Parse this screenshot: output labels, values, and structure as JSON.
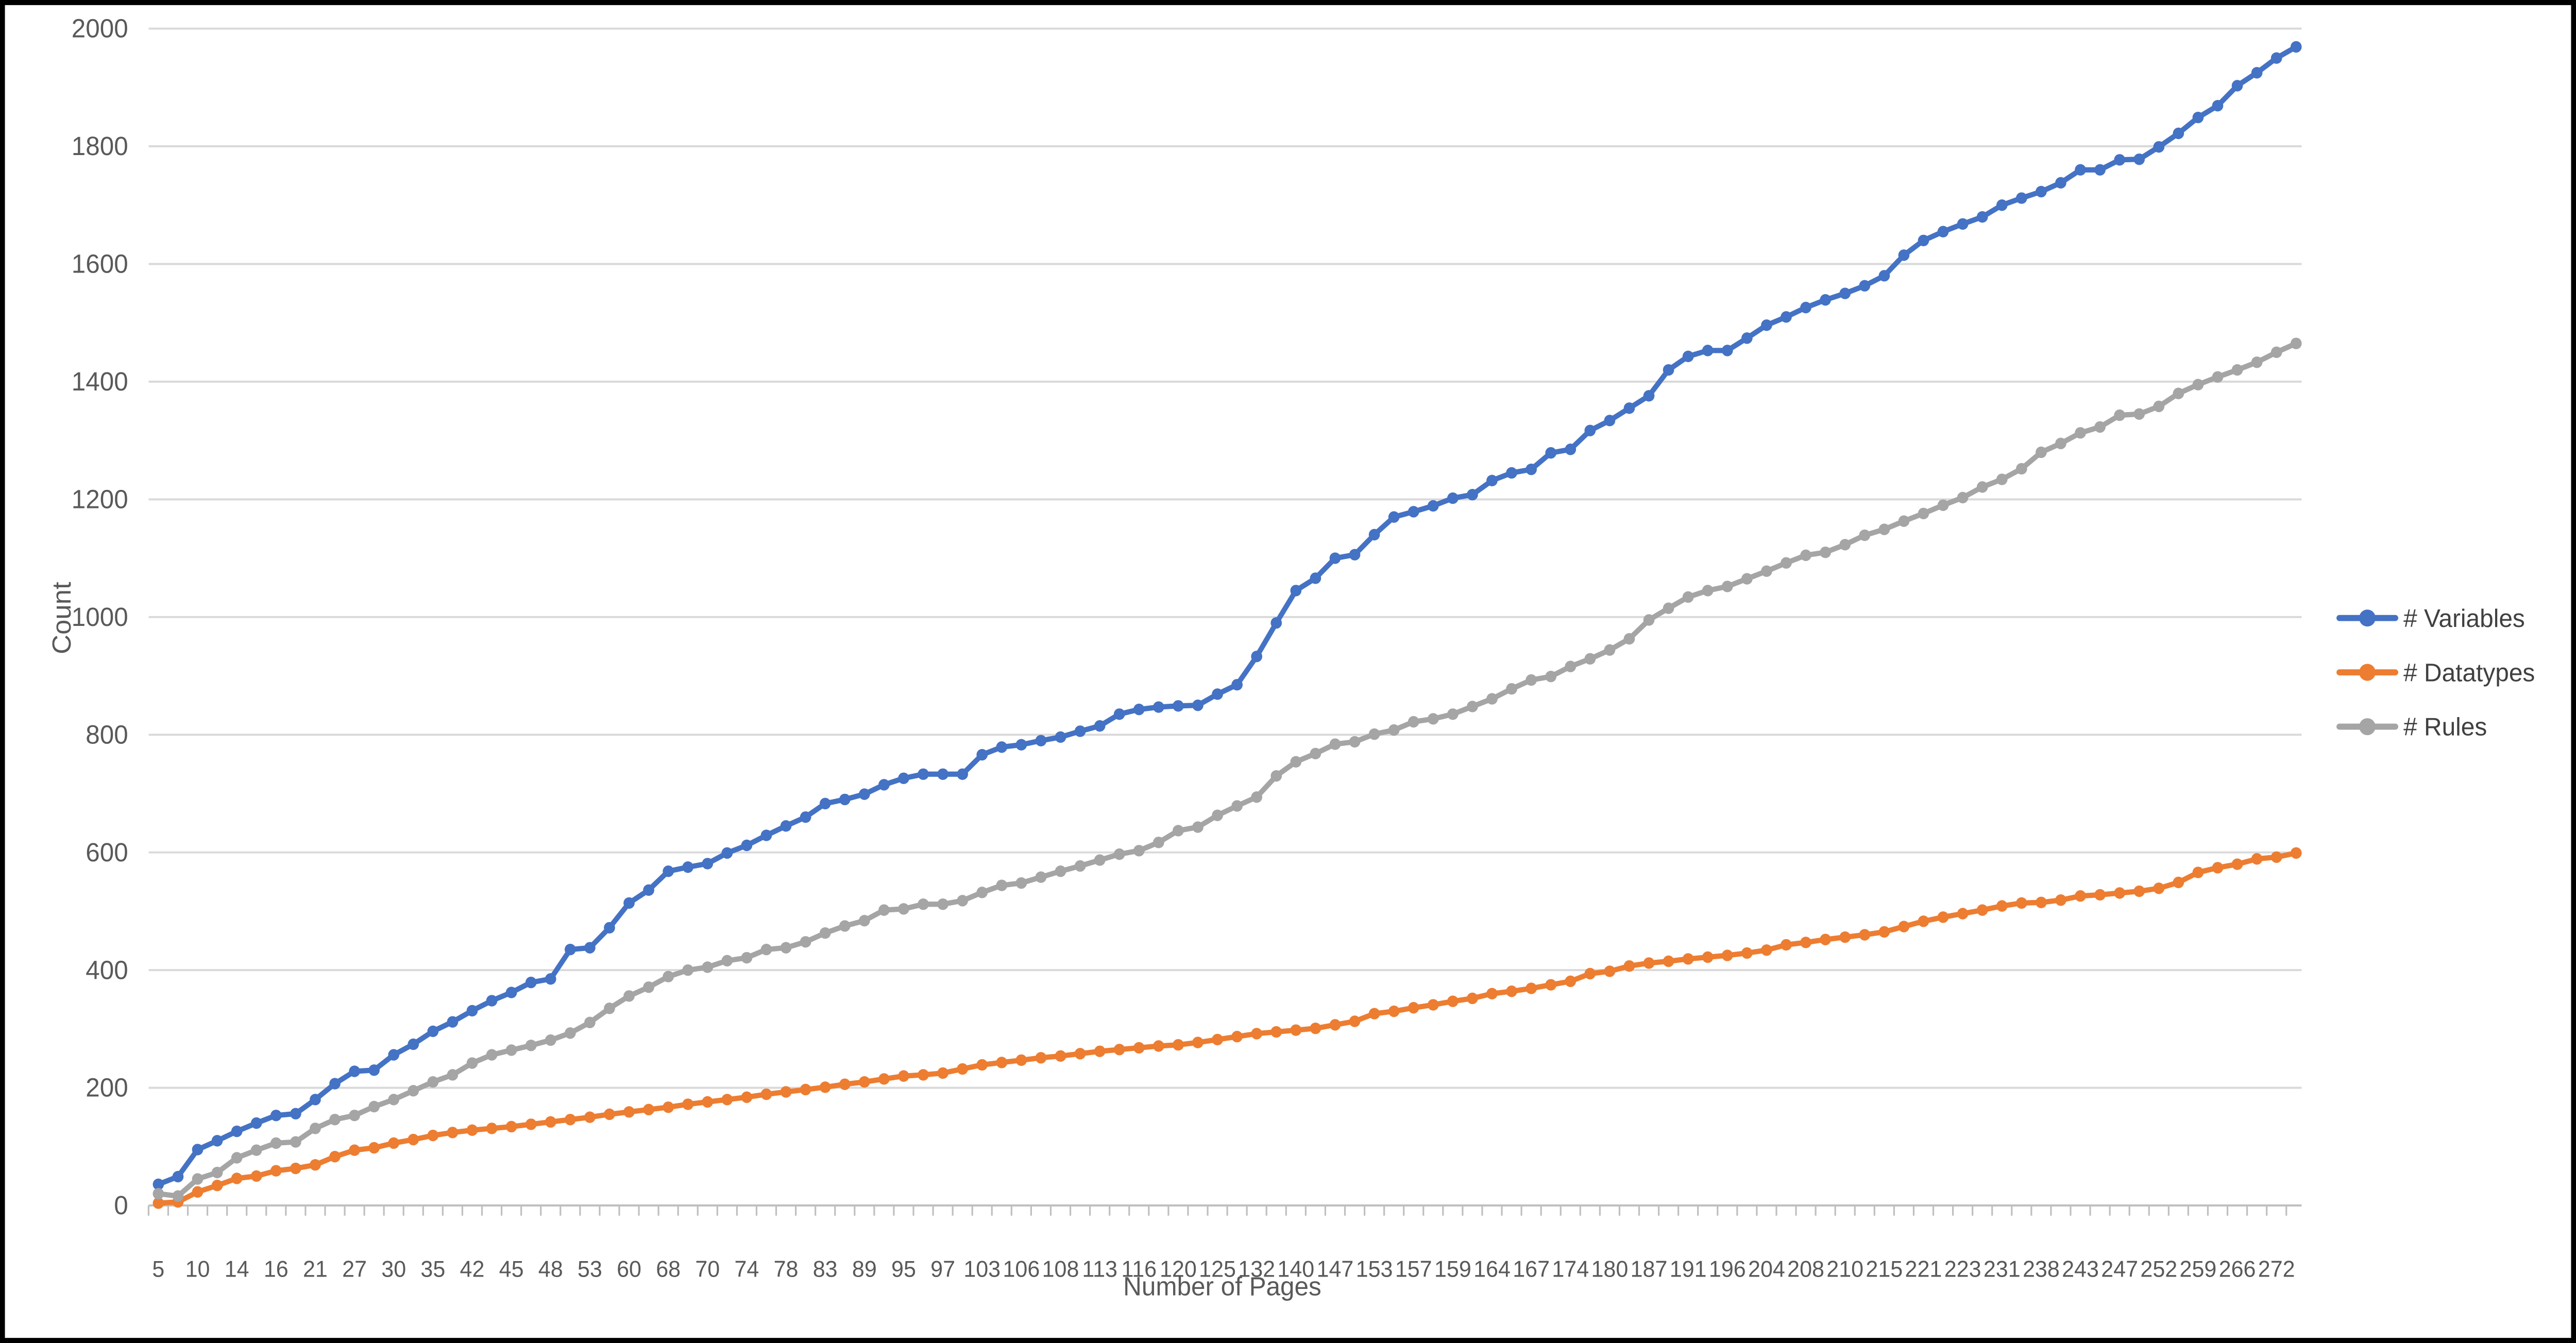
{
  "chart_data": {
    "type": "line",
    "title": "",
    "xlabel": "Number of Pages",
    "ylabel": "Count",
    "ylim": [
      0,
      2000
    ],
    "ytick_step": 200,
    "grid": "horizontal",
    "legend_position": "right",
    "n_categories": 110,
    "label_every_n_categories": 2,
    "x_tick_labels": [
      5,
      10,
      14,
      16,
      21,
      27,
      30,
      35,
      42,
      45,
      48,
      53,
      60,
      68,
      70,
      74,
      78,
      83,
      89,
      95,
      97,
      103,
      106,
      108,
      113,
      116,
      120,
      125,
      132,
      140,
      147,
      153,
      157,
      159,
      164,
      167,
      174,
      180,
      187,
      191,
      196,
      204,
      208,
      210,
      215,
      221,
      223,
      231,
      238,
      243,
      247,
      252,
      259,
      266,
      272
    ],
    "series": [
      {
        "name": "# Variables",
        "color": "#4472C4",
        "values": [
          36,
          49,
          95,
          110,
          126,
          140,
          153,
          156,
          180,
          207,
          228,
          230,
          256,
          274,
          296,
          312,
          331,
          348,
          362,
          379,
          385,
          435,
          438,
          472,
          514,
          536,
          568,
          575,
          581,
          599,
          612,
          629,
          645,
          660,
          683,
          690,
          699,
          715,
          726,
          733,
          733,
          733,
          766,
          779,
          783,
          790,
          796,
          806,
          815,
          835,
          843,
          847,
          849,
          850,
          869,
          885,
          933,
          990,
          1045,
          1066,
          1100,
          1106,
          1140,
          1170,
          1179,
          1189,
          1202,
          1208,
          1232,
          1245,
          1251,
          1279,
          1285,
          1317,
          1334,
          1355,
          1376,
          1420,
          1443,
          1453,
          1453,
          1474,
          1496,
          1510,
          1526,
          1539,
          1550,
          1563,
          1580,
          1615,
          1640,
          1655,
          1668,
          1680,
          1700,
          1712,
          1723,
          1738,
          1760,
          1760,
          1777,
          1778,
          1799,
          1822,
          1849,
          1869,
          1903,
          1925,
          1950,
          1969
        ]
      },
      {
        "name": "# Datatypes",
        "color": "#ED7D31",
        "values": [
          4,
          6,
          23,
          34,
          46,
          50,
          59,
          63,
          69,
          83,
          94,
          98,
          106,
          112,
          119,
          124,
          128,
          131,
          134,
          138,
          142,
          146,
          150,
          155,
          159,
          163,
          167,
          172,
          176,
          180,
          184,
          189,
          193,
          197,
          201,
          206,
          210,
          215,
          220,
          222,
          225,
          232,
          239,
          243,
          247,
          251,
          254,
          258,
          262,
          265,
          268,
          271,
          273,
          277,
          282,
          287,
          292,
          295,
          298,
          301,
          307,
          313,
          326,
          330,
          336,
          341,
          347,
          352,
          360,
          364,
          369,
          375,
          381,
          394,
          398,
          407,
          412,
          415,
          419,
          422,
          425,
          429,
          434,
          443,
          447,
          452,
          456,
          460,
          465,
          474,
          483,
          490,
          496,
          502,
          509,
          514,
          515,
          519,
          526,
          528,
          531,
          534,
          539,
          549,
          566,
          574,
          580,
          589,
          592,
          599
        ]
      },
      {
        "name": "# Rules",
        "color": "#A5A5A5",
        "values": [
          20,
          16,
          45,
          56,
          81,
          94,
          106,
          108,
          131,
          146,
          153,
          168,
          180,
          195,
          210,
          222,
          242,
          256,
          264,
          272,
          281,
          293,
          311,
          335,
          356,
          371,
          389,
          400,
          405,
          416,
          421,
          435,
          438,
          448,
          463,
          475,
          484,
          502,
          504,
          512,
          512,
          518,
          532,
          544,
          548,
          558,
          568,
          577,
          587,
          597,
          603,
          617,
          637,
          643,
          663,
          679,
          694,
          730,
          754,
          768,
          784,
          788,
          801,
          808,
          822,
          827,
          835,
          848,
          861,
          878,
          893,
          899,
          916,
          929,
          944,
          963,
          995,
          1015,
          1034,
          1045,
          1052,
          1065,
          1078,
          1092,
          1105,
          1110,
          1123,
          1139,
          1149,
          1163,
          1176,
          1190,
          1203,
          1221,
          1234,
          1252,
          1280,
          1295,
          1313,
          1323,
          1343,
          1345,
          1358,
          1380,
          1395,
          1408,
          1420,
          1433,
          1450,
          1465
        ]
      }
    ],
    "colors": {
      "gridline": "#D9D9D9",
      "axis_line": "#BFBFBF",
      "tick": "#BFBFBF",
      "text": "#595959",
      "legend_text": "#404040",
      "frame_border": "#000000",
      "background": "#FFFFFF"
    }
  }
}
